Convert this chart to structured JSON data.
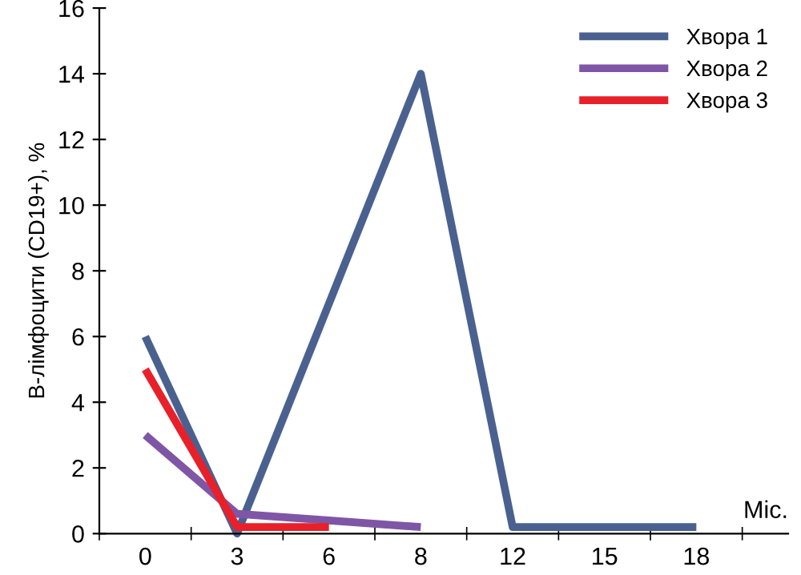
{
  "chart_data": {
    "type": "line",
    "xlabel": "Міс.",
    "ylabel": "В-лімфоцити (CD19+), %",
    "categories": [
      "0",
      "3",
      "6",
      "8",
      "12",
      "15",
      "18"
    ],
    "series": [
      {
        "name": "Хвора 1",
        "color": "#4a6190",
        "values": [
          6,
          0,
          null,
          14,
          0.2,
          0.2,
          0.2
        ]
      },
      {
        "name": "Хвора 2",
        "color": "#7f56a6",
        "values": [
          3,
          0.6,
          0.4,
          0.2,
          null,
          null,
          null
        ]
      },
      {
        "name": "Хвора 3",
        "color": "#e8202a",
        "values": [
          5,
          0.2,
          0.2,
          null,
          null,
          null,
          null
        ]
      }
    ],
    "ylim": [
      0,
      16
    ],
    "yticks": [
      0,
      2,
      4,
      6,
      8,
      10,
      12,
      14,
      16
    ],
    "grid": false,
    "legend": "top right",
    "marker": "none",
    "line_style": "solid"
  }
}
